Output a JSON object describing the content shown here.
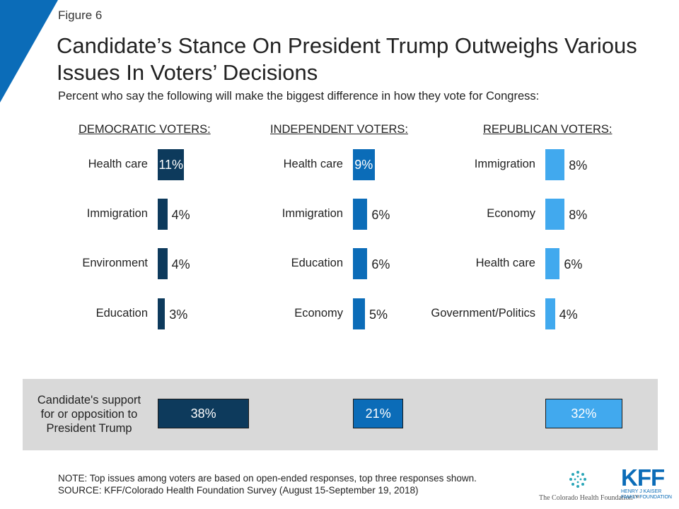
{
  "figure_label": "Figure 6",
  "title": "Candidate’s Stance On President Trump Outweighs Various Issues In Voters’ Decisions",
  "subtitle": "Percent who say the following will make the biggest difference in how they vote for Congress:",
  "colors": {
    "democratic": "#0d3a5c",
    "independent": "#0b6cb8",
    "republican": "#41a9ee",
    "band": "#d9d9d9",
    "corner": "#0b6cb8"
  },
  "chart_data": {
    "type": "bar",
    "orientation": "horizontal",
    "value_unit": "%",
    "panels": [
      {
        "header": "DEMOCRATIC VOTERS:",
        "categories": [
          "Health care",
          "Immigration",
          "Environment",
          "Education"
        ],
        "values": [
          11,
          4,
          4,
          3
        ],
        "labels": [
          "11%",
          "4%",
          "4%",
          "3%"
        ],
        "trump_value": 38,
        "trump_label": "38%"
      },
      {
        "header": "INDEPENDENT VOTERS:",
        "categories": [
          "Health care",
          "Immigration",
          "Education",
          "Economy"
        ],
        "values": [
          9,
          6,
          6,
          5
        ],
        "labels": [
          "9%",
          "6%",
          "6%",
          "5%"
        ],
        "trump_value": 21,
        "trump_label": "21%"
      },
      {
        "header": "REPUBLICAN VOTERS:",
        "categories": [
          "Immigration",
          "Economy",
          "Health care",
          "Government/Politics"
        ],
        "values": [
          8,
          8,
          6,
          4
        ],
        "labels": [
          "8%",
          "8%",
          "6%",
          "4%"
        ],
        "trump_value": 32,
        "trump_label": "32%"
      }
    ],
    "trump_row_label": "Candidate's support for or opposition to President Trump",
    "trump_row_label_lines": [
      "Candidate's support",
      "for or opposition to",
      "President Trump"
    ]
  },
  "note": "NOTE: Top issues among voters are based on open-ended responses, top three responses shown.",
  "source": "SOURCE: KFF/Colorado Health Foundation Survey (August 15-September 19, 2018)",
  "logos": {
    "chf": "The Colorado Health Foundation™",
    "kff_mark": "KFF",
    "kff_line1": "HENRY J KAISER",
    "kff_line2": "FAMILY FOUNDATION"
  }
}
